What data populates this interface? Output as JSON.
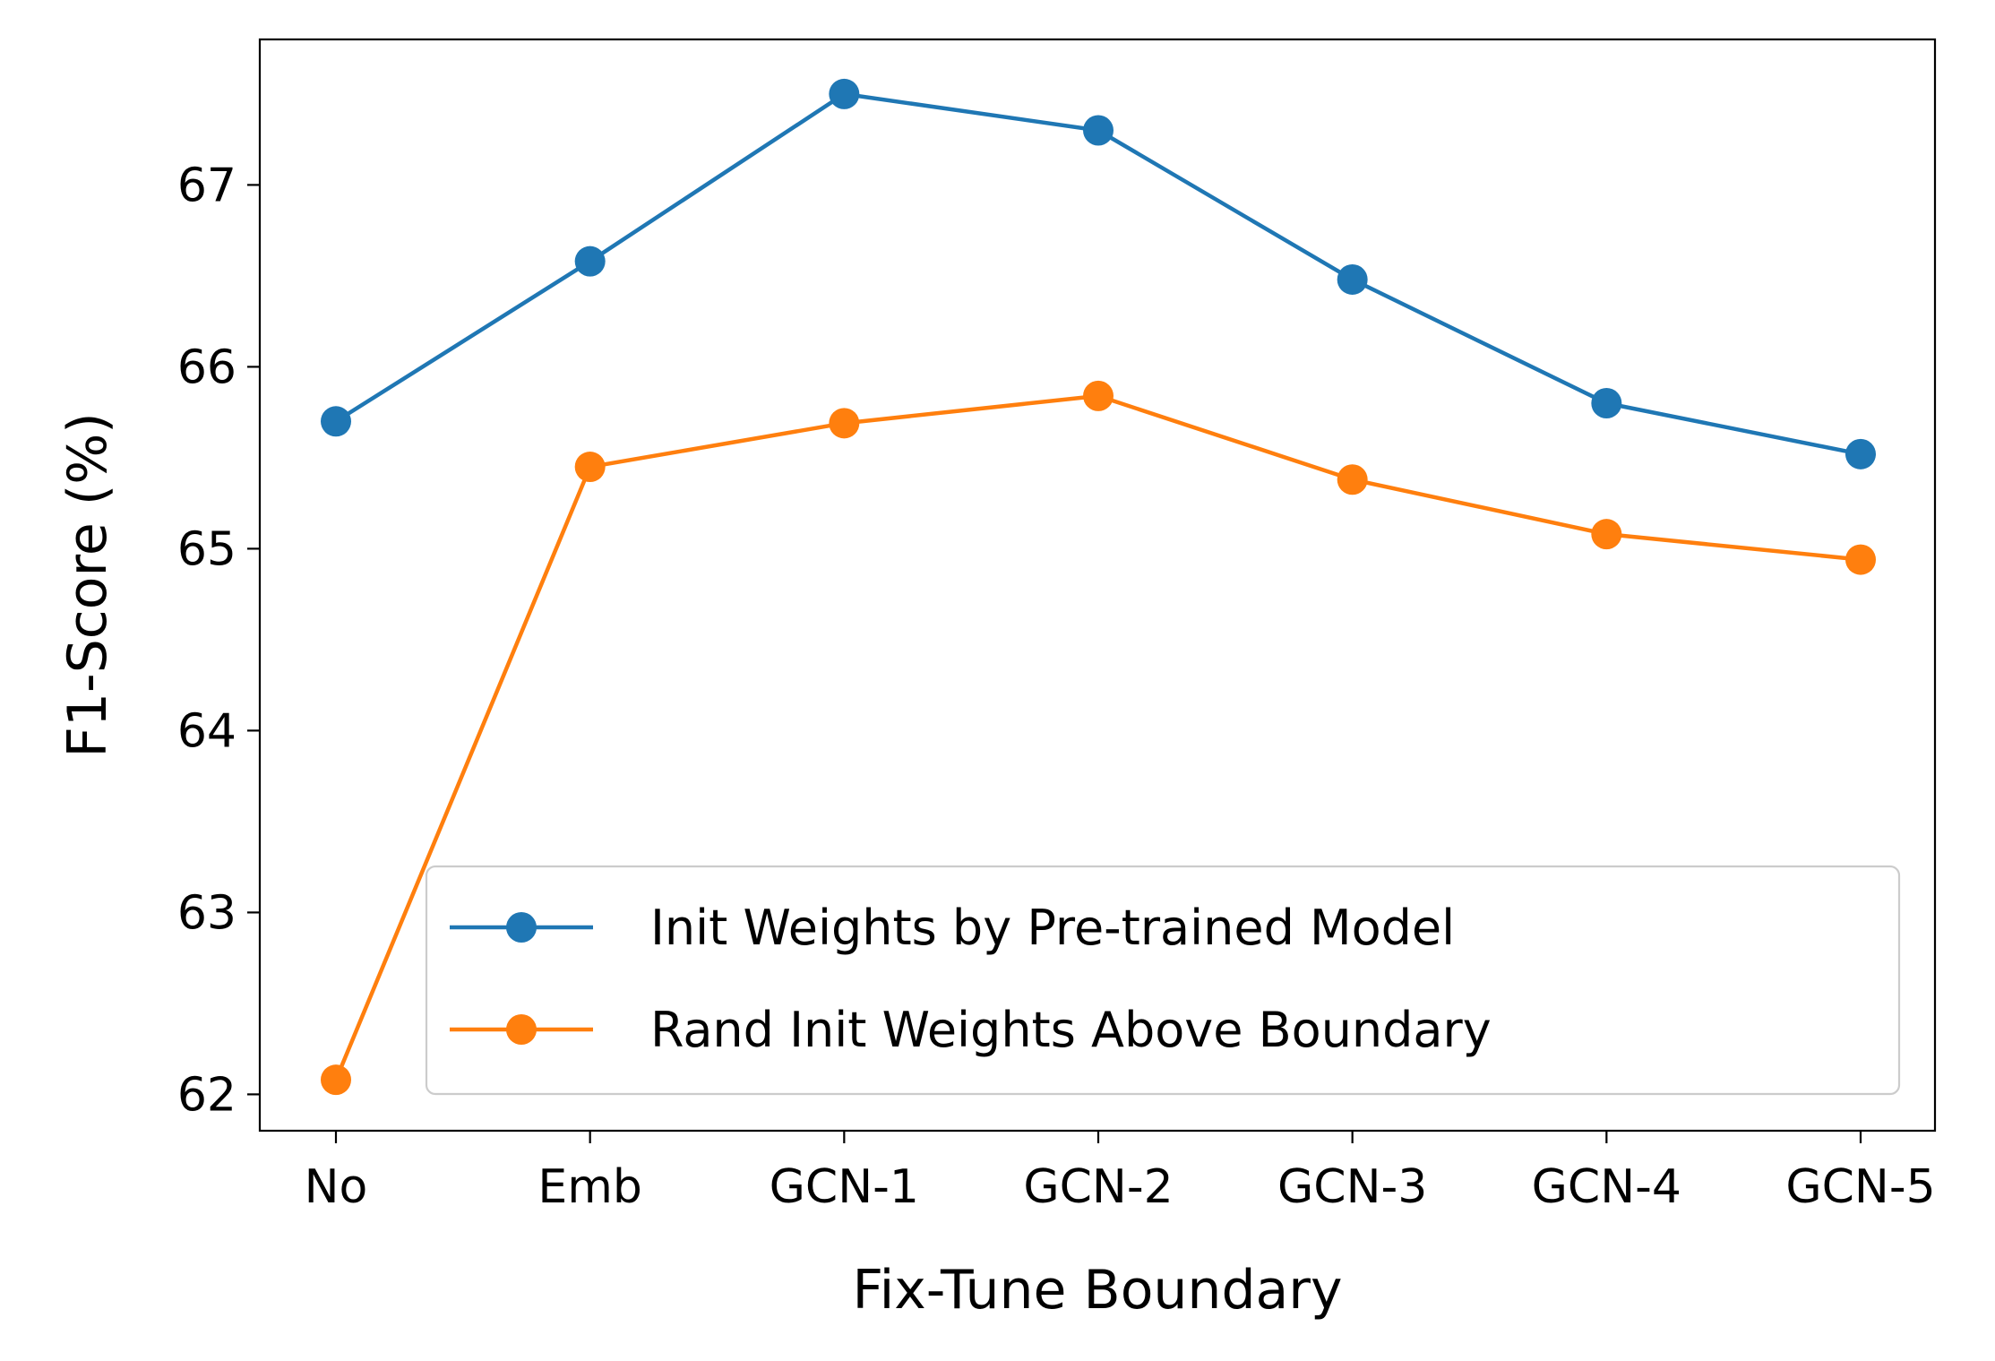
{
  "chart_data": {
    "type": "line",
    "title": "",
    "xlabel": "Fix-Tune Boundary",
    "ylabel": "F1-Score (%)",
    "categories": [
      "No",
      "Emb",
      "GCN-1",
      "GCN-2",
      "GCN-3",
      "GCN-4",
      "GCN-5"
    ],
    "ylim": [
      61.8,
      67.8
    ],
    "yticks": [
      62,
      63,
      64,
      65,
      66,
      67
    ],
    "grid": false,
    "legend_position": "lower-right",
    "series": [
      {
        "name": "Init Weights by Pre-trained Model",
        "color": "#1f77b4",
        "marker": "circle",
        "values": [
          65.7,
          66.58,
          67.5,
          67.3,
          66.48,
          65.8,
          65.52
        ]
      },
      {
        "name": "Rand Init Weights Above Boundary",
        "color": "#ff7f0e",
        "marker": "circle",
        "values": [
          62.08,
          65.45,
          65.69,
          65.84,
          65.38,
          65.08,
          64.94
        ]
      }
    ]
  }
}
